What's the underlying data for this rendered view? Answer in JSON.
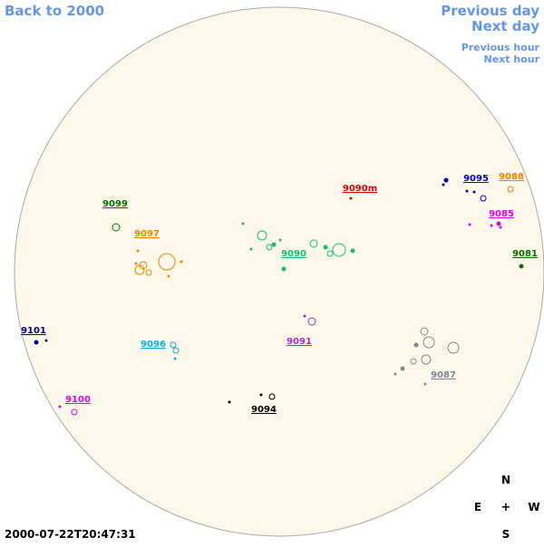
{
  "nav": {
    "back": "Back to 2000",
    "previous_day": "Previous day",
    "next_day": "Next day",
    "previous_hour": "Previous hour",
    "next_hour": "Next hour"
  },
  "regions": [
    {
      "label": "9099",
      "color": "#007000"
    },
    {
      "label": "9097",
      "color": "#e08a00"
    },
    {
      "label": "9090",
      "color": "#10c070"
    },
    {
      "label": "9090m",
      "color": "#dd0000"
    },
    {
      "label": "9095",
      "color": "#0000c8"
    },
    {
      "label": "9088",
      "color": "#f08000"
    },
    {
      "label": "9085",
      "color": "#e000e0"
    },
    {
      "label": "9081",
      "color": "#007000"
    },
    {
      "label": "9101",
      "color": "#000090"
    },
    {
      "label": "9096",
      "color": "#00b0e0"
    },
    {
      "label": "9091",
      "color": "#9a30c8"
    },
    {
      "label": "9087",
      "color": "#7a8898"
    },
    {
      "label": "9100",
      "color": "#e000e0"
    },
    {
      "label": "9094",
      "color": "#000000"
    }
  ],
  "compass": {
    "north": "N",
    "east": "E",
    "center": "+",
    "west": "W",
    "south": "S"
  },
  "timestamp": "2000-07-22T20:47:31"
}
